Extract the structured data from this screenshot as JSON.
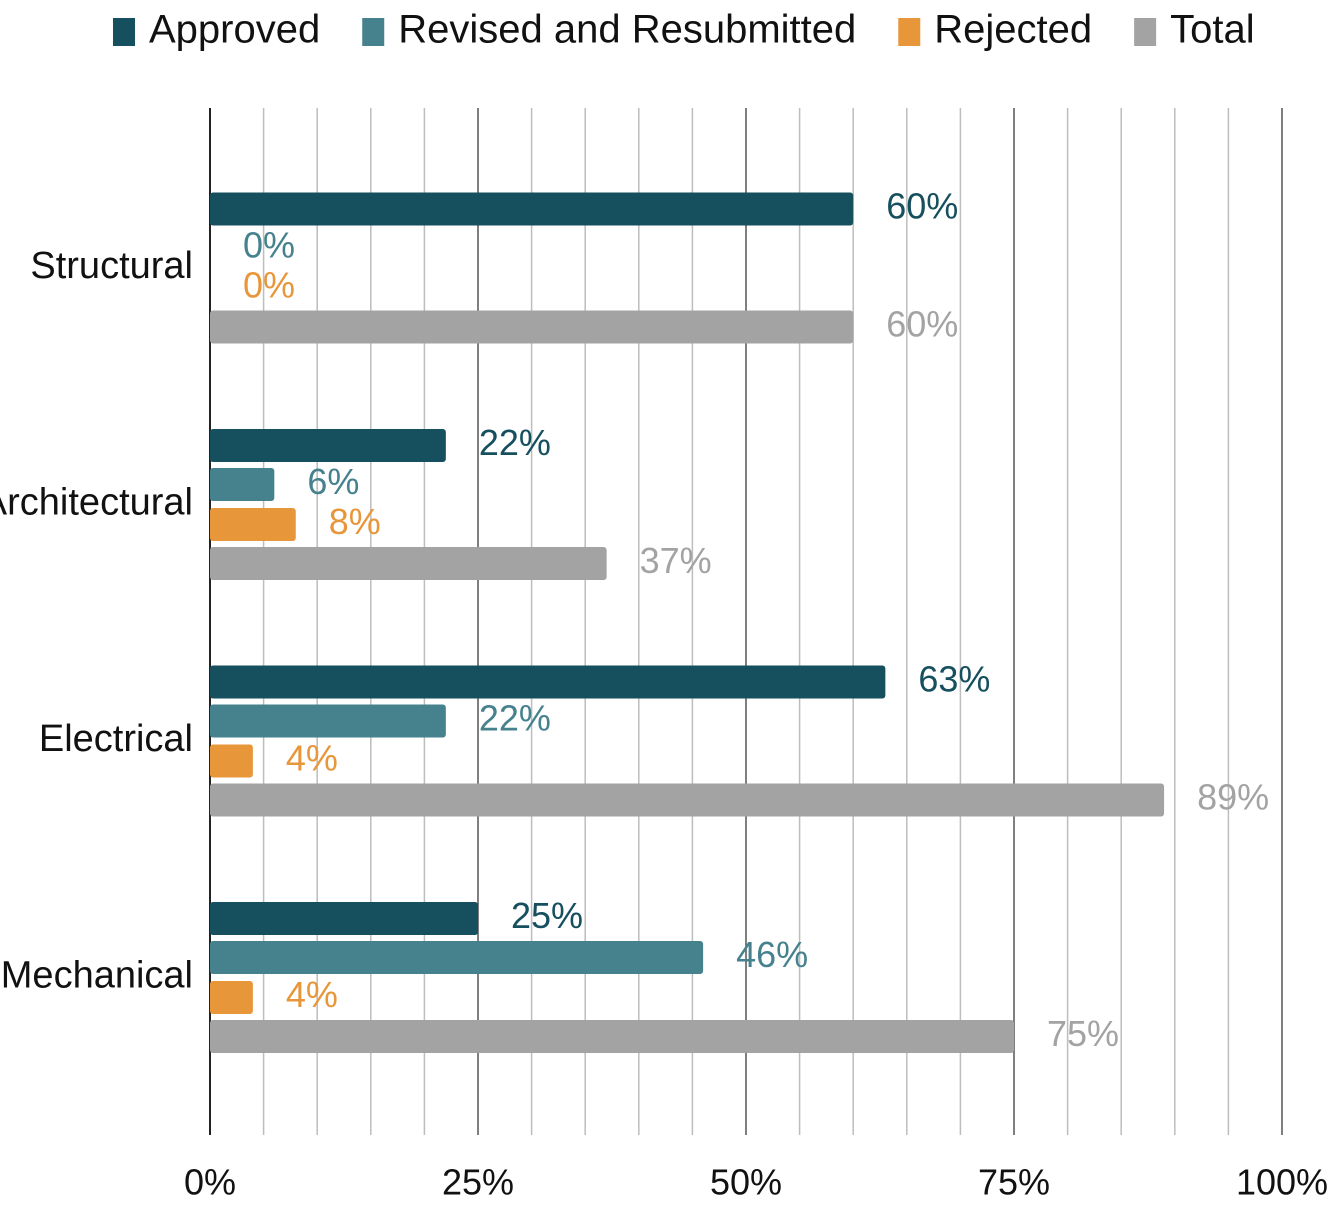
{
  "chart_data": {
    "type": "hbar",
    "categories": [
      "Structural",
      "Architectural",
      "Electrical",
      "Mechanical"
    ],
    "series": [
      {
        "name": "Approved",
        "color": "#164f5e",
        "values": [
          60,
          22,
          63,
          25
        ],
        "value_labels": [
          "60%",
          "22%",
          "63%",
          "25%"
        ]
      },
      {
        "name": "Revised and Resubmitted",
        "color": "#46818e",
        "values": [
          0,
          6,
          22,
          46
        ],
        "value_labels": [
          "0%",
          "6%",
          "22%",
          "46%"
        ]
      },
      {
        "name": "Rejected",
        "color": "#e8963a",
        "values": [
          0,
          8,
          4,
          4
        ],
        "value_labels": [
          "0%",
          "8%",
          "4%",
          "4%"
        ]
      },
      {
        "name": "Total",
        "color": "#a3a3a3",
        "values": [
          60,
          37,
          89,
          75
        ],
        "value_labels": [
          "60%",
          "37%",
          "89%",
          "75%"
        ]
      }
    ],
    "xlim": [
      0,
      100
    ],
    "xticks": [
      {
        "value": 0,
        "label": "0%"
      },
      {
        "value": 25,
        "label": "25%"
      },
      {
        "value": 50,
        "label": "50%"
      },
      {
        "value": 75,
        "label": "75%"
      },
      {
        "value": 100,
        "label": "100%"
      }
    ],
    "xticks_minor": [
      5,
      10,
      15,
      20,
      30,
      35,
      40,
      45,
      55,
      60,
      65,
      70,
      80,
      85,
      90,
      95
    ],
    "grid": true,
    "legend": "top"
  }
}
